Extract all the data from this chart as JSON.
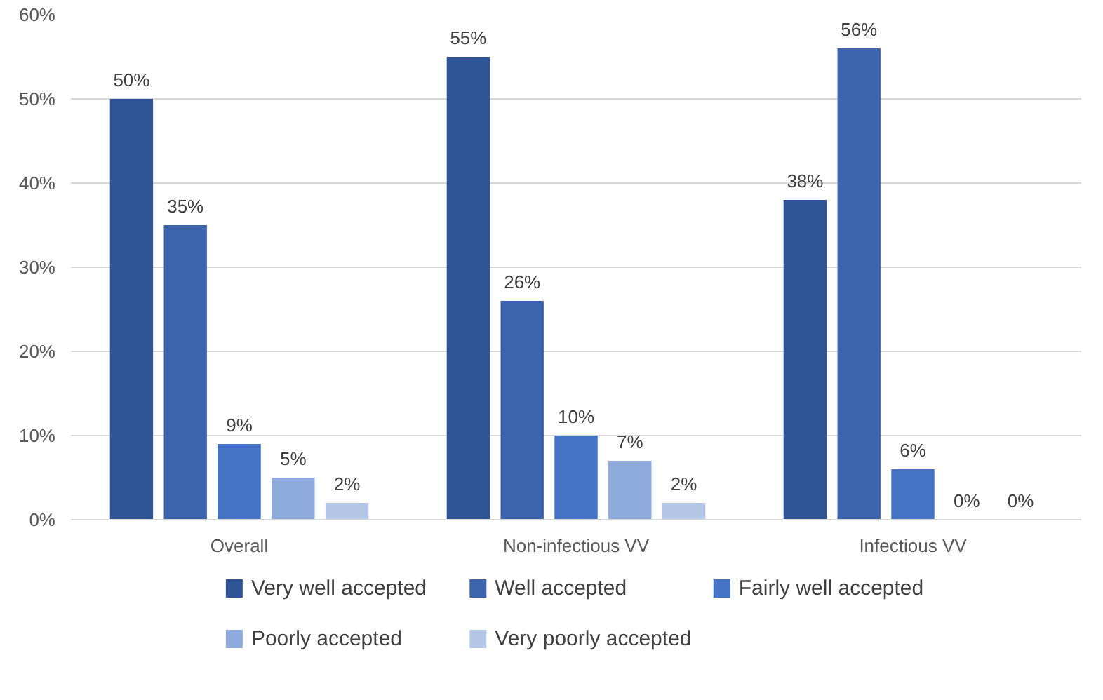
{
  "chart_data": {
    "type": "bar",
    "categories": [
      "Overall",
      "Non-infectious VV",
      "Infectious VV"
    ],
    "series": [
      {
        "name": "Very well accepted",
        "color": "#2f5597",
        "values": [
          50,
          55,
          38
        ]
      },
      {
        "name": "Well accepted",
        "color": "#3b64ad",
        "values": [
          35,
          26,
          56
        ]
      },
      {
        "name": "Fairly well accepted",
        "color": "#4472c4",
        "values": [
          9,
          10,
          6
        ]
      },
      {
        "name": "Poorly accepted",
        "color": "#8faadc",
        "values": [
          5,
          7,
          0
        ]
      },
      {
        "name": "Very poorly accepted",
        "color": "#b4c7e7",
        "values": [
          2,
          2,
          0
        ]
      }
    ],
    "ylim": [
      0,
      60
    ],
    "yticks": [
      {
        "value": 0,
        "label": "0%"
      },
      {
        "value": 10,
        "label": "10%"
      },
      {
        "value": 20,
        "label": "20%"
      },
      {
        "value": 30,
        "label": "30%"
      },
      {
        "value": 40,
        "label": "40%"
      },
      {
        "value": 50,
        "label": "50%"
      },
      {
        "value": 60,
        "label": "60%"
      }
    ],
    "value_labels": [
      [
        "50%",
        "55%",
        "38%"
      ],
      [
        "35%",
        "26%",
        "56%"
      ],
      [
        "9%",
        "10%",
        "6%"
      ],
      [
        "5%",
        "7%",
        "0%"
      ],
      [
        "2%",
        "2%",
        "0%"
      ]
    ],
    "grid": "y",
    "legend": "bottom"
  }
}
